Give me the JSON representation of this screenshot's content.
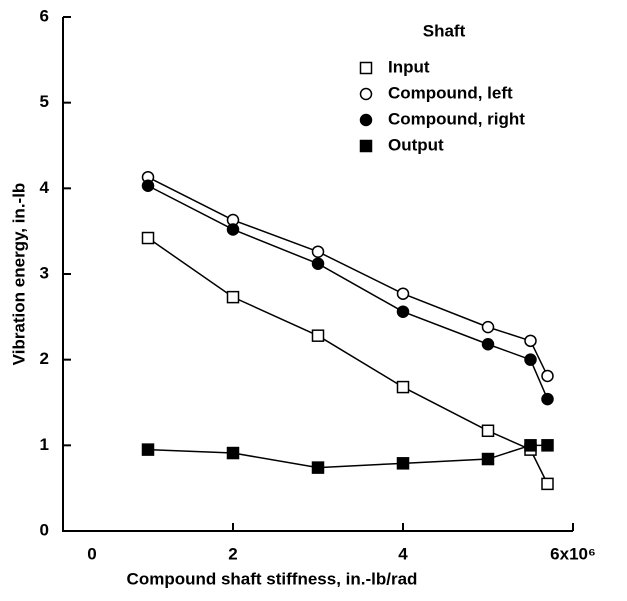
{
  "chart_data": {
    "type": "line",
    "xlabel": "Compound shaft stiffness, in.-lb/rad",
    "ylabel": "Vibration energy, in.-lb",
    "legend_title": "Shaft",
    "legend": "upper right",
    "xlim": [
      0,
      6
    ],
    "ylim": [
      0,
      6
    ],
    "xticks": [
      0,
      2,
      4,
      {
        "value": 6,
        "label": "6x10⁶"
      }
    ],
    "yticks": [
      0,
      1,
      2,
      3,
      4,
      5,
      6
    ],
    "x": [
      1,
      2,
      3,
      4,
      5,
      5.5,
      5.7
    ],
    "series": [
      {
        "name": "Input",
        "marker": "square",
        "filled": false,
        "color": "#000000",
        "values": [
          3.42,
          2.73,
          2.28,
          1.68,
          1.17,
          0.95,
          0.55
        ]
      },
      {
        "name": "Compound, left",
        "marker": "circle",
        "filled": false,
        "color": "#000000",
        "values": [
          4.13,
          3.63,
          3.26,
          2.77,
          2.38,
          2.22,
          1.81
        ]
      },
      {
        "name": "Compound, right",
        "marker": "circle",
        "filled": true,
        "color": "#000000",
        "values": [
          4.03,
          3.52,
          3.12,
          2.56,
          2.18,
          2.0,
          1.54
        ]
      },
      {
        "name": "Output",
        "marker": "square",
        "filled": true,
        "color": "#000000",
        "values": [
          0.95,
          0.91,
          0.74,
          0.79,
          0.84,
          1.0,
          1.0
        ]
      }
    ]
  }
}
